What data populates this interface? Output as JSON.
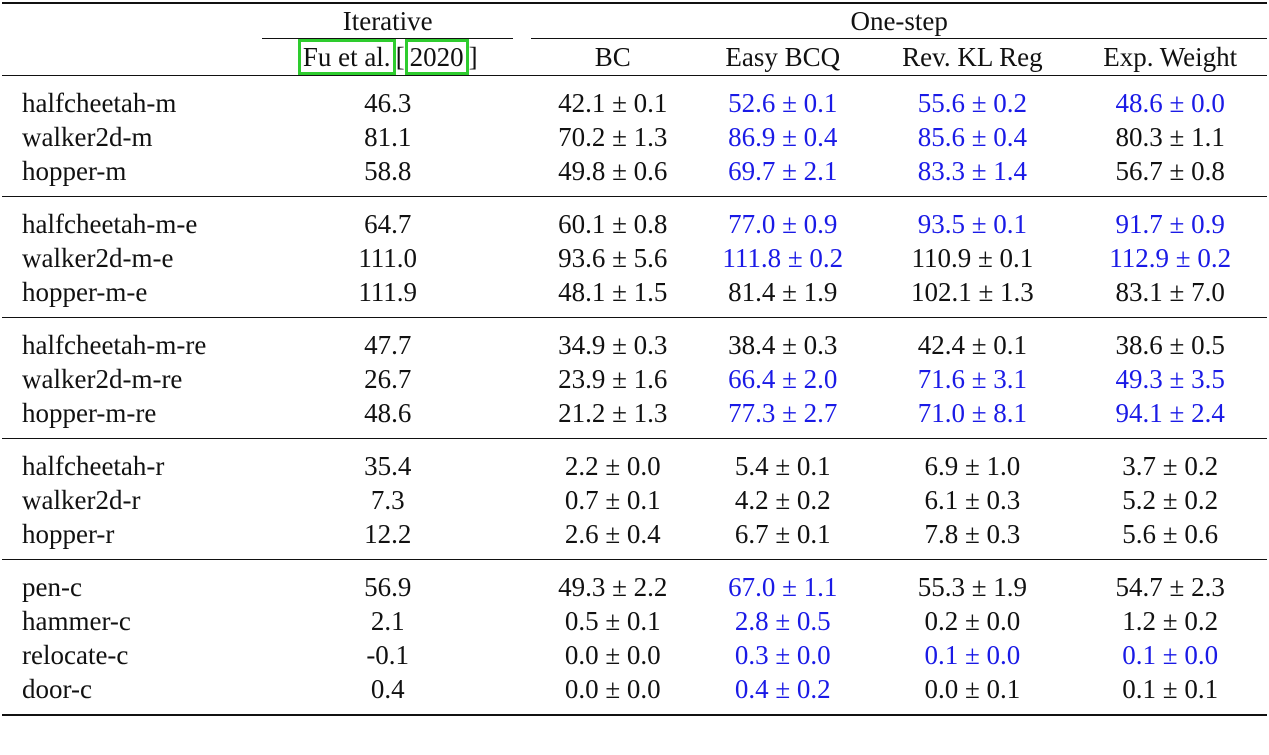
{
  "header": {
    "iterative_label": "Iterative",
    "onestep_label": "One-step",
    "cite_author": "Fu et al.",
    "cite_bracket_open": "[",
    "cite_year": "2020",
    "cite_bracket_close": "]",
    "columns": [
      "BC",
      "Easy BCQ",
      "Rev. KL Reg",
      "Exp. Weight"
    ]
  },
  "groups": [
    [
      {
        "name": "halfcheetah-m",
        "cells": [
          {
            "v": "46.3",
            "b": false,
            "blue": false
          },
          {
            "v": "42.1 ± 0.1",
            "b": false,
            "blue": false
          },
          {
            "v": "52.6 ± 0.1",
            "b": false,
            "blue": true
          },
          {
            "v": "55.6 ± 0.2",
            "b": true,
            "blue": true
          },
          {
            "v": "48.6 ± 0.0",
            "b": false,
            "blue": true
          }
        ]
      },
      {
        "name": "walker2d-m",
        "cells": [
          {
            "v": "81.1",
            "b": false,
            "blue": false
          },
          {
            "v": "70.2 ± 1.3",
            "b": false,
            "blue": false
          },
          {
            "v": "86.9 ± 0.4",
            "b": true,
            "blue": true
          },
          {
            "v": "85.6 ± 0.4",
            "b": false,
            "blue": true
          },
          {
            "v": "80.3 ± 1.1",
            "b": false,
            "blue": false
          }
        ]
      },
      {
        "name": "hopper-m",
        "cells": [
          {
            "v": "58.8",
            "b": false,
            "blue": false
          },
          {
            "v": "49.8 ± 0.6",
            "b": false,
            "blue": false
          },
          {
            "v": "69.7 ± 2.1",
            "b": false,
            "blue": true
          },
          {
            "v": "83.3 ± 1.4",
            "b": true,
            "blue": true
          },
          {
            "v": "56.7 ± 0.8",
            "b": false,
            "blue": false
          }
        ]
      }
    ],
    [
      {
        "name": "halfcheetah-m-e",
        "cells": [
          {
            "v": "64.7",
            "b": false,
            "blue": false
          },
          {
            "v": "60.1 ± 0.8",
            "b": false,
            "blue": false
          },
          {
            "v": "77.0 ± 0.9",
            "b": false,
            "blue": true
          },
          {
            "v": "93.5 ± 0.1",
            "b": true,
            "blue": true
          },
          {
            "v": "91.7 ± 0.9",
            "b": false,
            "blue": true
          }
        ]
      },
      {
        "name": "walker2d-m-e",
        "cells": [
          {
            "v": "111.0",
            "b": false,
            "blue": false
          },
          {
            "v": "93.6 ± 5.6",
            "b": false,
            "blue": false
          },
          {
            "v": "111.8 ± 0.2",
            "b": false,
            "blue": true
          },
          {
            "v": "110.9 ± 0.1",
            "b": false,
            "blue": false
          },
          {
            "v": "112.9 ± 0.2",
            "b": true,
            "blue": true
          }
        ]
      },
      {
        "name": "hopper-m-e",
        "cells": [
          {
            "v": "111.9",
            "b": true,
            "blue": false
          },
          {
            "v": "48.1 ± 1.5",
            "b": false,
            "blue": false
          },
          {
            "v": "81.4 ± 1.9",
            "b": false,
            "blue": false
          },
          {
            "v": "102.1 ± 1.3",
            "b": false,
            "blue": false
          },
          {
            "v": "83.1 ± 7.0",
            "b": false,
            "blue": false
          }
        ]
      }
    ],
    [
      {
        "name": "halfcheetah-m-re",
        "cells": [
          {
            "v": "47.7",
            "b": true,
            "blue": false
          },
          {
            "v": "34.9 ± 0.3",
            "b": false,
            "blue": false
          },
          {
            "v": "38.4 ± 0.3",
            "b": false,
            "blue": false
          },
          {
            "v": "42.4 ± 0.1",
            "b": false,
            "blue": false
          },
          {
            "v": "38.6 ± 0.5",
            "b": false,
            "blue": false
          }
        ]
      },
      {
        "name": "walker2d-m-re",
        "cells": [
          {
            "v": "26.7",
            "b": false,
            "blue": false
          },
          {
            "v": "23.9 ± 1.6",
            "b": false,
            "blue": false
          },
          {
            "v": "66.4 ± 2.0",
            "b": false,
            "blue": true
          },
          {
            "v": "71.6 ± 3.1",
            "b": true,
            "blue": true
          },
          {
            "v": "49.3 ± 3.5",
            "b": false,
            "blue": true
          }
        ]
      },
      {
        "name": "hopper-m-re",
        "cells": [
          {
            "v": "48.6",
            "b": false,
            "blue": false
          },
          {
            "v": "21.2 ± 1.3",
            "b": false,
            "blue": false
          },
          {
            "v": "77.3 ± 2.7",
            "b": false,
            "blue": true
          },
          {
            "v": "71.0 ± 8.1",
            "b": false,
            "blue": true
          },
          {
            "v": "94.1 ± 2.4",
            "b": true,
            "blue": true
          }
        ]
      }
    ],
    [
      {
        "name": "halfcheetah-r",
        "cells": [
          {
            "v": "35.4",
            "b": true,
            "blue": false
          },
          {
            "v": "2.2 ± 0.0",
            "b": false,
            "blue": false
          },
          {
            "v": "5.4 ± 0.1",
            "b": false,
            "blue": false
          },
          {
            "v": "6.9 ± 1.0",
            "b": false,
            "blue": false
          },
          {
            "v": "3.7 ± 0.2",
            "b": false,
            "blue": false
          }
        ]
      },
      {
        "name": "walker2d-r",
        "cells": [
          {
            "v": "7.3",
            "b": true,
            "blue": false
          },
          {
            "v": "0.7 ± 0.1",
            "b": false,
            "blue": false
          },
          {
            "v": "4.2 ± 0.2",
            "b": false,
            "blue": false
          },
          {
            "v": "6.1 ± 0.3",
            "b": false,
            "blue": false
          },
          {
            "v": "5.2 ± 0.2",
            "b": false,
            "blue": false
          }
        ]
      },
      {
        "name": "hopper-r",
        "cells": [
          {
            "v": "12.2",
            "b": true,
            "blue": false
          },
          {
            "v": "2.6 ± 0.4",
            "b": false,
            "blue": false
          },
          {
            "v": "6.7 ± 0.1",
            "b": false,
            "blue": false
          },
          {
            "v": "7.8 ± 0.3",
            "b": false,
            "blue": false
          },
          {
            "v": "5.6 ± 0.6",
            "b": false,
            "blue": false
          }
        ]
      }
    ],
    [
      {
        "name": "pen-c",
        "cells": [
          {
            "v": "56.9",
            "b": false,
            "blue": false
          },
          {
            "v": "49.3 ± 2.2",
            "b": false,
            "blue": false
          },
          {
            "v": "67.0 ± 1.1",
            "b": true,
            "blue": true
          },
          {
            "v": "55.3 ± 1.9",
            "b": false,
            "blue": false
          },
          {
            "v": "54.7 ± 2.3",
            "b": false,
            "blue": false
          }
        ]
      },
      {
        "name": "hammer-c",
        "cells": [
          {
            "v": "2.1",
            "b": false,
            "blue": false
          },
          {
            "v": "0.5 ± 0.1",
            "b": false,
            "blue": false
          },
          {
            "v": "2.8 ± 0.5",
            "b": true,
            "blue": true
          },
          {
            "v": "0.2 ± 0.0",
            "b": false,
            "blue": false
          },
          {
            "v": "1.2 ± 0.2",
            "b": false,
            "blue": false
          }
        ]
      },
      {
        "name": "relocate-c",
        "cells": [
          {
            "v": "-0.1",
            "b": false,
            "blue": false
          },
          {
            "v": "0.0 ± 0.0",
            "b": false,
            "blue": false
          },
          {
            "v": "0.3 ± 0.0",
            "b": true,
            "blue": true
          },
          {
            "v": "0.1 ± 0.0",
            "b": false,
            "blue": true
          },
          {
            "v": "0.1 ± 0.0",
            "b": false,
            "blue": true
          }
        ]
      },
      {
        "name": "door-c",
        "cells": [
          {
            "v": "0.4",
            "b": true,
            "blue": false
          },
          {
            "v": "0.0 ± 0.0",
            "b": false,
            "blue": false
          },
          {
            "v": "0.4 ± 0.2",
            "b": true,
            "blue": true
          },
          {
            "v": "0.0 ± 0.1",
            "b": false,
            "blue": false
          },
          {
            "v": "0.1 ± 0.1",
            "b": false,
            "blue": false
          }
        ]
      }
    ]
  ],
  "colors": {
    "highlight_blue": "#1a1ae6",
    "citation_box": "#2ecc2e",
    "text": "#111111"
  }
}
